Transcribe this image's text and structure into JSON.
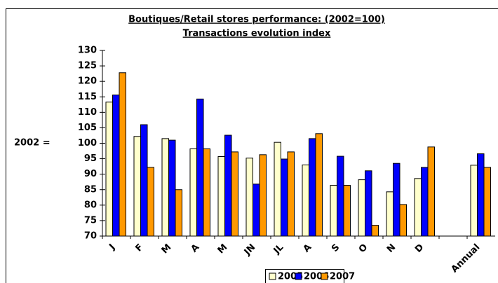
{
  "chart_data": {
    "type": "bar",
    "title": "Boutiques/Retail stores performance: (2002=100)",
    "subtitle": "Transactions evolution index",
    "annotation": "2002 =",
    "categories": [
      "J",
      "F",
      "M",
      "A",
      "M",
      "JN",
      "JL",
      "A",
      "S",
      "O",
      "N",
      "D",
      null,
      "Annual"
    ],
    "series": [
      {
        "name": "2005",
        "color": "#ffffcc",
        "values": [
          113.3,
          102.2,
          101.5,
          98.2,
          95.7,
          95.2,
          100.3,
          93,
          86.4,
          88.2,
          84.3,
          88.6,
          null,
          92.9
        ]
      },
      {
        "name": "2006",
        "color": "#0000ff",
        "values": [
          115.6,
          106,
          101,
          114.3,
          102.6,
          86.8,
          94.9,
          101.5,
          95.8,
          91.1,
          93.5,
          92.2,
          null,
          96.6
        ]
      },
      {
        "name": "2007",
        "color": "#ff9900",
        "values": [
          122.8,
          92.2,
          85,
          98.2,
          97.2,
          96.3,
          97.2,
          103.1,
          86.4,
          73.5,
          80.2,
          98.8,
          null,
          92.2
        ]
      }
    ],
    "ylim": [
      70,
      130
    ],
    "yticks": [
      70,
      75,
      80,
      85,
      90,
      95,
      100,
      105,
      110,
      115,
      120,
      125,
      130
    ]
  }
}
